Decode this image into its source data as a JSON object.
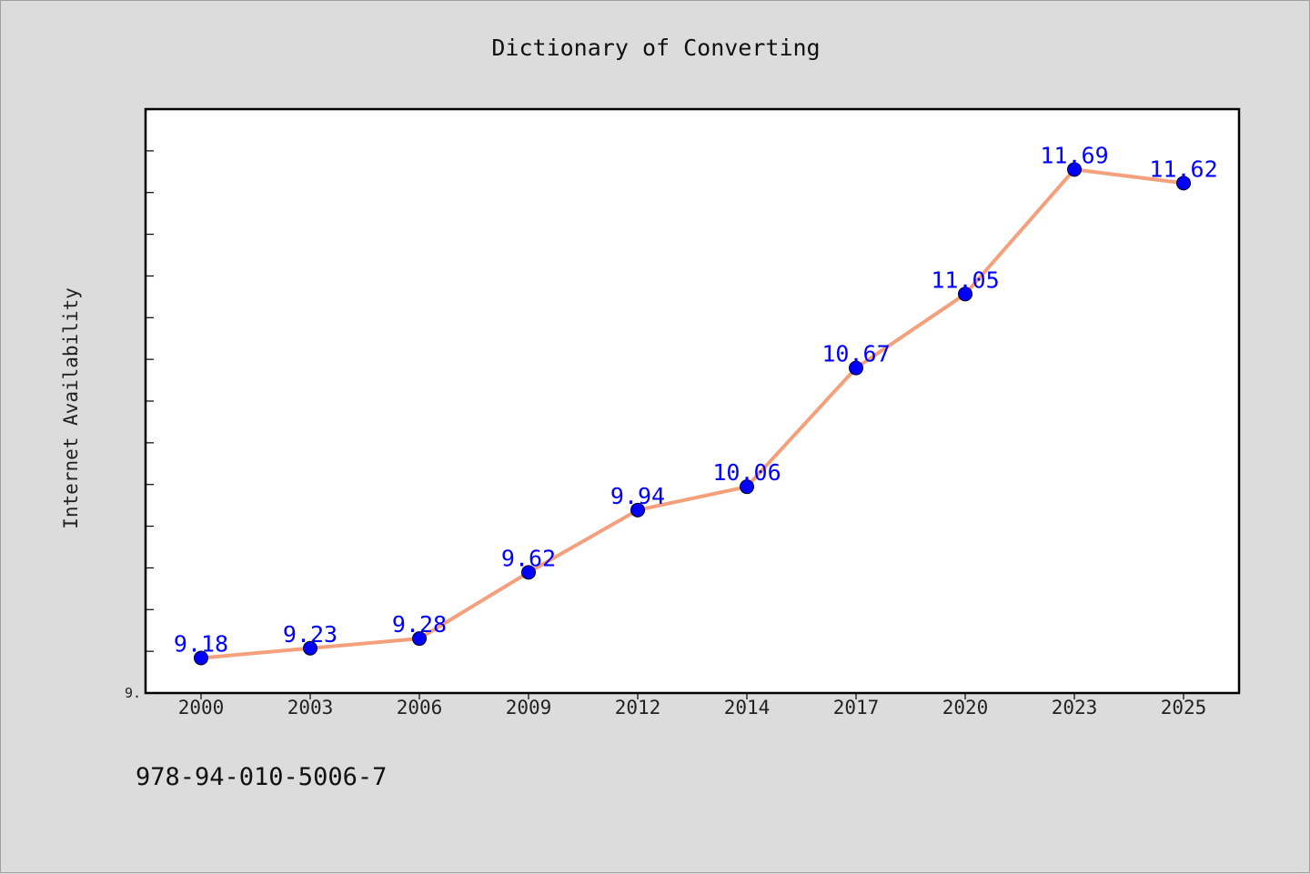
{
  "chart_data": {
    "type": "line",
    "title": "Dictionary of Converting",
    "xlabel": "",
    "ylabel": "Internet Availability",
    "categories": [
      "2000",
      "2003",
      "2006",
      "2009",
      "2012",
      "2014",
      "2017",
      "2020",
      "2023",
      "2025"
    ],
    "series": [
      {
        "values": [
          9.18,
          9.23,
          9.28,
          9.62,
          9.94,
          10.06,
          10.67,
          11.05,
          11.69,
          11.62
        ],
        "labels": [
          "9.18",
          "9.23",
          "9.28",
          "9.62",
          "9.94",
          "10.06",
          "10.67",
          "11.05",
          "11.69",
          "11.62"
        ],
        "line_color": "#f4a07c",
        "marker_color": "#0000ff"
      }
    ],
    "ylim": [
      9.0,
      12.0
    ],
    "y_tick_labels": [
      "9."
    ],
    "grid": false,
    "legend": "none"
  },
  "footer": {
    "isbn": "978-94-010-5006-7"
  },
  "colors": {
    "background": "#dcdcdc",
    "plot_area": "#ffffff",
    "line": "#f4a07c",
    "marker": "#0000ff",
    "data_label": "#0000ff"
  }
}
